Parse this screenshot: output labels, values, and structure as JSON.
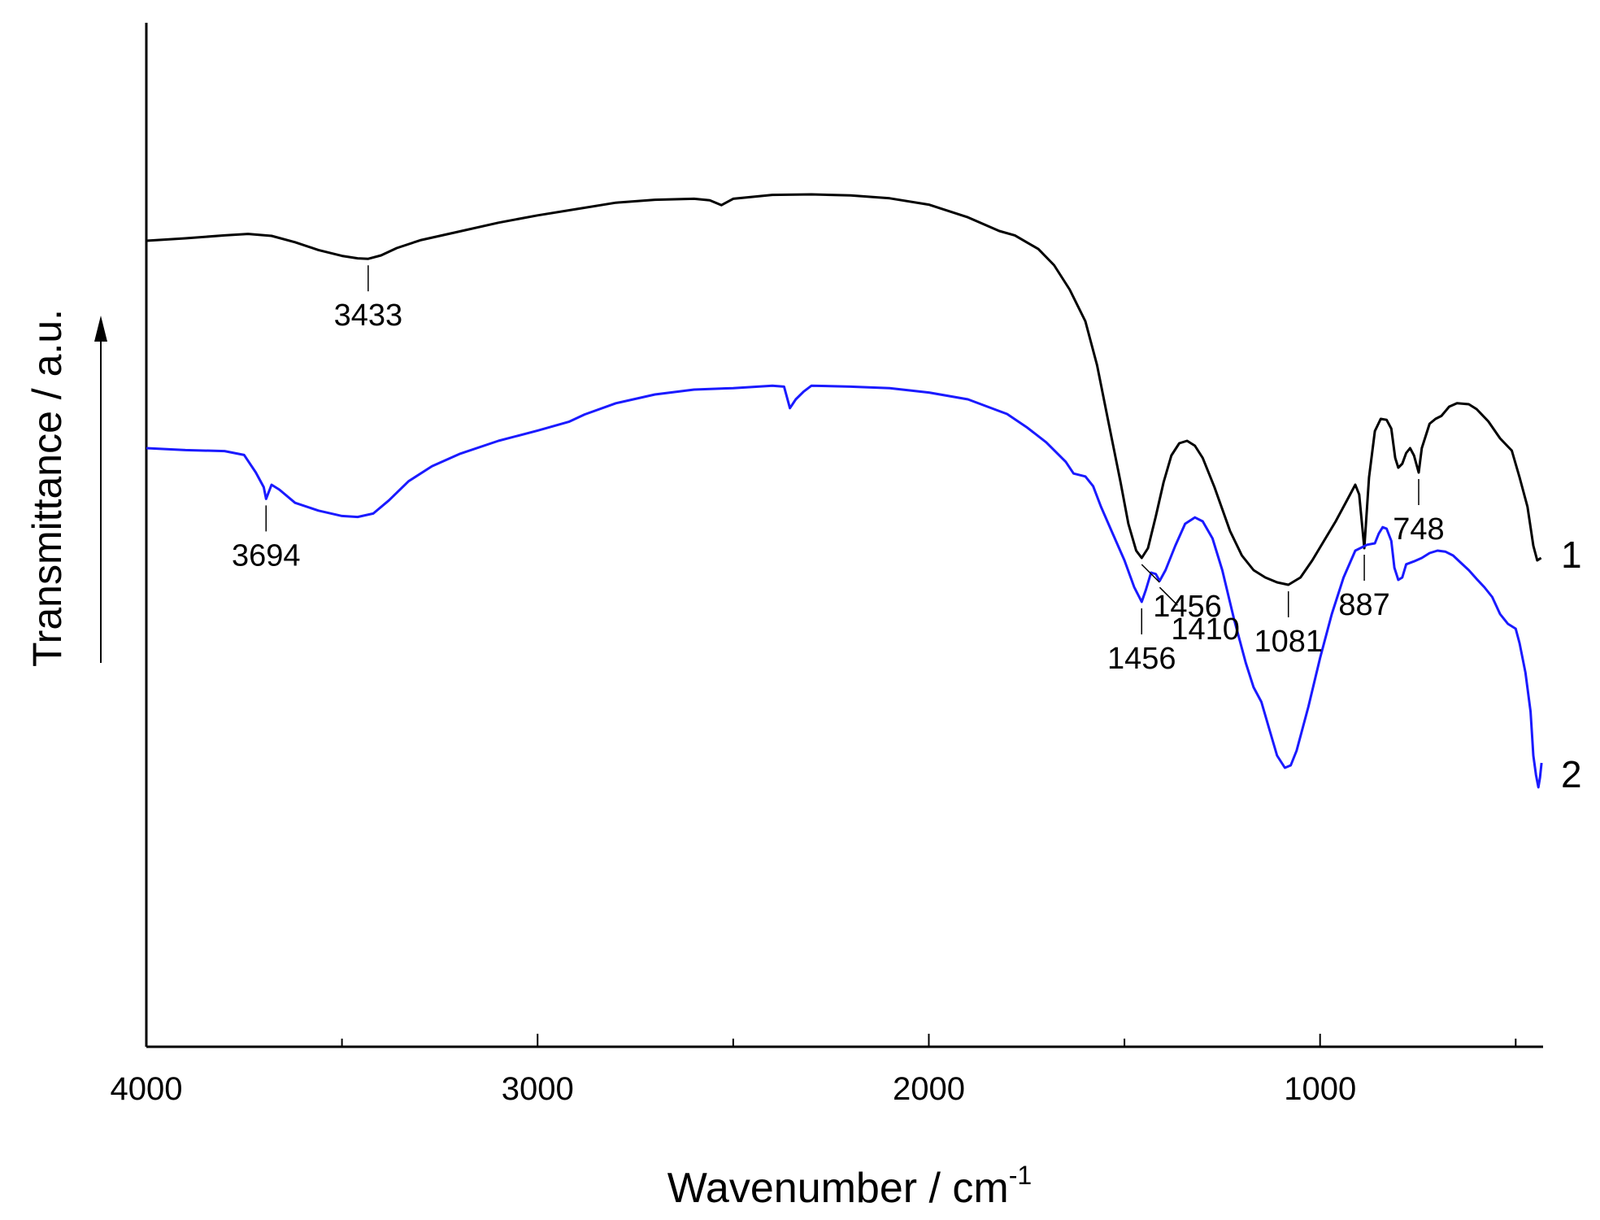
{
  "chart_data": {
    "type": "line",
    "title": "",
    "xlabel": "Wavenumber / cm",
    "xlabel_superscript": "-1",
    "ylabel": "Transmittance / a.u.",
    "xlim": [
      4000,
      430
    ],
    "x_reversed": true,
    "xticks": [
      4000,
      3000,
      2000,
      1000
    ],
    "x_minor_step": 500,
    "grid": false,
    "legend": "none",
    "series": [
      {
        "label": "1",
        "color": "#000000",
        "points": [
          [
            4000,
            61.5
          ],
          [
            3900,
            62.0
          ],
          [
            3800,
            62.6
          ],
          [
            3740,
            62.9
          ],
          [
            3680,
            62.5
          ],
          [
            3620,
            61.2
          ],
          [
            3560,
            59.6
          ],
          [
            3500,
            58.4
          ],
          [
            3460,
            57.9
          ],
          [
            3433,
            57.8
          ],
          [
            3400,
            58.5
          ],
          [
            3360,
            60.0
          ],
          [
            3300,
            61.6
          ],
          [
            3200,
            63.4
          ],
          [
            3100,
            65.2
          ],
          [
            3000,
            66.7
          ],
          [
            2900,
            68.0
          ],
          [
            2800,
            69.3
          ],
          [
            2700,
            69.9
          ],
          [
            2600,
            70.1
          ],
          [
            2560,
            69.8
          ],
          [
            2530,
            68.8
          ],
          [
            2500,
            70.1
          ],
          [
            2400,
            70.9
          ],
          [
            2300,
            71.0
          ],
          [
            2200,
            70.8
          ],
          [
            2100,
            70.2
          ],
          [
            2000,
            68.9
          ],
          [
            1900,
            66.3
          ],
          [
            1820,
            63.5
          ],
          [
            1780,
            62.6
          ],
          [
            1720,
            59.8
          ],
          [
            1680,
            56.5
          ],
          [
            1640,
            51.5
          ],
          [
            1600,
            45.0
          ],
          [
            1570,
            36.0
          ],
          [
            1540,
            24.0
          ],
          [
            1510,
            12.0
          ],
          [
            1490,
            3.5
          ],
          [
            1470,
            -2.0
          ],
          [
            1456,
            -3.5
          ],
          [
            1440,
            -1.5
          ],
          [
            1420,
            5.0
          ],
          [
            1400,
            12.0
          ],
          [
            1380,
            17.5
          ],
          [
            1360,
            20.0
          ],
          [
            1340,
            20.5
          ],
          [
            1320,
            19.5
          ],
          [
            1300,
            17.0
          ],
          [
            1270,
            11.0
          ],
          [
            1230,
            2.0
          ],
          [
            1200,
            -3.0
          ],
          [
            1170,
            -6.0
          ],
          [
            1140,
            -7.5
          ],
          [
            1110,
            -8.5
          ],
          [
            1081,
            -9.0
          ],
          [
            1050,
            -7.5
          ],
          [
            1020,
            -4.0
          ],
          [
            990,
            0.0
          ],
          [
            960,
            4.0
          ],
          [
            930,
            8.5
          ],
          [
            910,
            11.5
          ],
          [
            900,
            9.5
          ],
          [
            887,
            -1.5
          ],
          [
            875,
            13.0
          ],
          [
            860,
            22.5
          ],
          [
            845,
            25.0
          ],
          [
            830,
            24.8
          ],
          [
            818,
            23.0
          ],
          [
            808,
            17.0
          ],
          [
            800,
            15.0
          ],
          [
            790,
            15.8
          ],
          [
            780,
            18.0
          ],
          [
            770,
            19.0
          ],
          [
            760,
            17.5
          ],
          [
            748,
            14.0
          ],
          [
            740,
            19.0
          ],
          [
            720,
            24.0
          ],
          [
            705,
            25.0
          ],
          [
            690,
            25.6
          ],
          [
            670,
            27.5
          ],
          [
            650,
            28.2
          ],
          [
            620,
            28.0
          ],
          [
            600,
            27.0
          ],
          [
            570,
            24.5
          ],
          [
            540,
            21.0
          ],
          [
            510,
            18.5
          ],
          [
            490,
            13.0
          ],
          [
            470,
            7.0
          ],
          [
            455,
            -1.0
          ],
          [
            445,
            -4.0
          ],
          [
            435,
            -3.5
          ]
        ]
      },
      {
        "label": "2",
        "color": "#1a1aff",
        "points": [
          [
            4000,
            19.0
          ],
          [
            3900,
            18.6
          ],
          [
            3800,
            18.4
          ],
          [
            3750,
            17.6
          ],
          [
            3720,
            14.0
          ],
          [
            3700,
            11.0
          ],
          [
            3694,
            8.6
          ],
          [
            3680,
            11.5
          ],
          [
            3660,
            10.5
          ],
          [
            3620,
            7.8
          ],
          [
            3560,
            6.2
          ],
          [
            3500,
            5.1
          ],
          [
            3460,
            4.9
          ],
          [
            3420,
            5.6
          ],
          [
            3380,
            8.3
          ],
          [
            3330,
            12.2
          ],
          [
            3270,
            15.3
          ],
          [
            3200,
            17.8
          ],
          [
            3100,
            20.5
          ],
          [
            3000,
            22.6
          ],
          [
            2920,
            24.4
          ],
          [
            2880,
            25.9
          ],
          [
            2800,
            28.2
          ],
          [
            2700,
            30.0
          ],
          [
            2600,
            31.0
          ],
          [
            2500,
            31.3
          ],
          [
            2400,
            31.8
          ],
          [
            2370,
            31.6
          ],
          [
            2355,
            27.2
          ],
          [
            2340,
            29.0
          ],
          [
            2320,
            30.6
          ],
          [
            2300,
            31.8
          ],
          [
            2200,
            31.6
          ],
          [
            2100,
            31.3
          ],
          [
            2000,
            30.4
          ],
          [
            1900,
            29.0
          ],
          [
            1850,
            27.5
          ],
          [
            1800,
            26.0
          ],
          [
            1750,
            23.3
          ],
          [
            1700,
            20.2
          ],
          [
            1650,
            16.2
          ],
          [
            1630,
            13.8
          ],
          [
            1600,
            13.2
          ],
          [
            1580,
            11.2
          ],
          [
            1560,
            7.0
          ],
          [
            1530,
            1.5
          ],
          [
            1500,
            -4.0
          ],
          [
            1475,
            -9.5
          ],
          [
            1456,
            -12.5
          ],
          [
            1445,
            -10.0
          ],
          [
            1432,
            -6.5
          ],
          [
            1420,
            -6.8
          ],
          [
            1410,
            -8.2
          ],
          [
            1395,
            -6.0
          ],
          [
            1370,
            -1.0
          ],
          [
            1345,
            3.5
          ],
          [
            1320,
            4.8
          ],
          [
            1300,
            4.0
          ],
          [
            1275,
            0.5
          ],
          [
            1250,
            -6.0
          ],
          [
            1220,
            -16.0
          ],
          [
            1190,
            -25.0
          ],
          [
            1170,
            -30.0
          ],
          [
            1150,
            -33.0
          ],
          [
            1130,
            -38.5
          ],
          [
            1110,
            -44.0
          ],
          [
            1090,
            -46.5
          ],
          [
            1075,
            -46.0
          ],
          [
            1060,
            -43.0
          ],
          [
            1030,
            -34.0
          ],
          [
            1000,
            -24.0
          ],
          [
            970,
            -15.0
          ],
          [
            940,
            -7.5
          ],
          [
            910,
            -2.0
          ],
          [
            880,
            -0.8
          ],
          [
            860,
            -0.5
          ],
          [
            850,
            1.5
          ],
          [
            840,
            2.8
          ],
          [
            830,
            2.5
          ],
          [
            818,
            0.0
          ],
          [
            810,
            -5.5
          ],
          [
            800,
            -8.0
          ],
          [
            790,
            -7.5
          ],
          [
            780,
            -4.8
          ],
          [
            760,
            -4.2
          ],
          [
            740,
            -3.5
          ],
          [
            720,
            -2.5
          ],
          [
            700,
            -2.0
          ],
          [
            680,
            -2.2
          ],
          [
            660,
            -3.0
          ],
          [
            640,
            -4.5
          ],
          [
            620,
            -6.0
          ],
          [
            600,
            -7.8
          ],
          [
            580,
            -9.5
          ],
          [
            560,
            -11.5
          ],
          [
            540,
            -15.0
          ],
          [
            520,
            -17.0
          ],
          [
            500,
            -18.0
          ],
          [
            490,
            -21.0
          ],
          [
            475,
            -27.0
          ],
          [
            462,
            -35.0
          ],
          [
            455,
            -44.0
          ],
          [
            448,
            -48.0
          ],
          [
            442,
            -50.5
          ],
          [
            438,
            -48.5
          ],
          [
            434,
            -45.5
          ]
        ]
      }
    ],
    "annotations": [
      {
        "series": "1",
        "x": 3433,
        "text": "3433",
        "side": "below"
      },
      {
        "series": "1",
        "x": 1456,
        "text": "1456",
        "side": "below-right"
      },
      {
        "series": "1",
        "x": 1081,
        "text": "1081",
        "side": "below"
      },
      {
        "series": "1",
        "x": 887,
        "text": "887",
        "side": "below"
      },
      {
        "series": "1",
        "x": 748,
        "text": "748",
        "side": "below"
      },
      {
        "series": "2",
        "x": 3694,
        "text": "3694",
        "side": "below"
      },
      {
        "series": "2",
        "x": 1456,
        "text": "1456",
        "side": "below"
      },
      {
        "series": "2",
        "x": 1410,
        "text": "1410",
        "side": "below-right"
      }
    ]
  }
}
